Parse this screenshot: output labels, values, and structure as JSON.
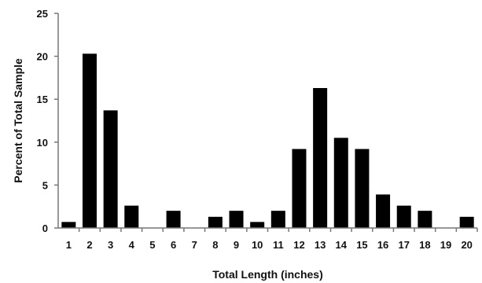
{
  "chart_data": {
    "type": "bar",
    "xlabel": "Total Length (inches)",
    "ylabel": "Percent of Total Sample",
    "ylim": [
      0,
      25
    ],
    "yticks": [
      "0",
      "5",
      "10",
      "15",
      "20",
      "25"
    ],
    "categories": [
      "1",
      "2",
      "3",
      "4",
      "5",
      "6",
      "7",
      "8",
      "9",
      "10",
      "11",
      "12",
      "13",
      "14",
      "15",
      "16",
      "17",
      "18",
      "19",
      "20"
    ],
    "values": [
      0.7,
      20.3,
      13.7,
      2.6,
      0,
      2.0,
      0,
      1.3,
      2.0,
      0.7,
      2.0,
      9.2,
      16.3,
      10.5,
      9.2,
      3.9,
      2.6,
      2.0,
      0,
      1.3
    ],
    "bar_color": "#000000",
    "grid": false,
    "legend": "none"
  }
}
